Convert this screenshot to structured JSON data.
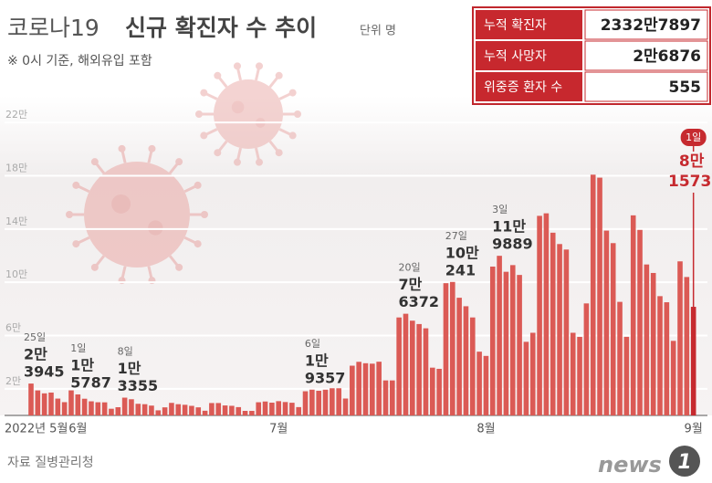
{
  "chart_data": {
    "type": "bar",
    "title": [
      "코로나19",
      "신규 확진자 수 추이"
    ],
    "unit": "단위 명",
    "subtitle": "※ 0시 기준, 해외유입 포함",
    "source": "자료 질병관리청",
    "logo": [
      "news",
      "1"
    ],
    "summary": [
      [
        "누적 확진자",
        "2332만7897"
      ],
      [
        "누적 사망자",
        "2만6876"
      ],
      [
        "위중증 환자 수",
        "555"
      ]
    ],
    "color": "#db5a55",
    "last_color": "#c62a2f",
    "ylim": [
      0,
      240000
    ],
    "yticks": [
      {
        "value": 20000,
        "label": "2만"
      },
      {
        "value": 60000,
        "label": "6만"
      },
      {
        "value": 100000,
        "label": "10만"
      },
      {
        "value": 140000,
        "label": "14만"
      },
      {
        "value": 180000,
        "label": "18만"
      },
      {
        "value": 220000,
        "label": "22만"
      }
    ],
    "grid": true,
    "categories": [
      "2022년 5월",
      null,
      null,
      null,
      null,
      null,
      null,
      "6월",
      null,
      null,
      null,
      null,
      null,
      null,
      null,
      null,
      null,
      null,
      null,
      null,
      null,
      null,
      null,
      null,
      null,
      null,
      null,
      null,
      null,
      null,
      null,
      null,
      null,
      null,
      null,
      null,
      null,
      "7월",
      null,
      null,
      null,
      null,
      null,
      null,
      null,
      null,
      null,
      null,
      null,
      null,
      null,
      null,
      null,
      null,
      null,
      null,
      null,
      null,
      null,
      null,
      null,
      null,
      null,
      null,
      null,
      null,
      null,
      null,
      "8월",
      null,
      null,
      null,
      null,
      null,
      null,
      null,
      null,
      null,
      null,
      null,
      null,
      null,
      null,
      null,
      null,
      null,
      null,
      null,
      null,
      null,
      null,
      null,
      null,
      null,
      null,
      null,
      null,
      null,
      null,
      "9월"
    ],
    "values": [
      23945,
      18796,
      16584,
      17178,
      12650,
      9970,
      18816,
      15787,
      12542,
      10595,
      9896,
      9828,
      5022,
      6170,
      13355,
      12155,
      8730,
      8438,
      7382,
      3828,
      6068,
      9428,
      8441,
      7992,
      7197,
      6068,
      3530,
      9305,
      9310,
      7498,
      7224,
      6238,
      3423,
      3421,
      9896,
      10463,
      9595,
      10715,
      10059,
      9528,
      6254,
      18147,
      19357,
      18511,
      19323,
      20410,
      20402,
      12693,
      37360,
      40266,
      39196,
      38882,
      40342,
      26299,
      26299,
      73582,
      76372,
      71170,
      68632,
      65433,
      35883,
      35000,
      99327,
      100241,
      88384,
      82002,
      73589,
      47883,
      44689,
      111789,
      119889,
      107894,
      112901,
      105507,
      55292,
      62078,
      149897,
      151792,
      137241,
      128714,
      124592,
      62078,
      59000,
      84128,
      180803,
      178574,
      138812,
      129411,
      85297,
      59046,
      150267,
      139339,
      113371,
      107000,
      89586,
      85000,
      56000,
      115714,
      103961,
      81573
    ],
    "day_labels": [
      "25일",
      null,
      null,
      null,
      null,
      null,
      null,
      "1일",
      null,
      null,
      null,
      null,
      null,
      null,
      "8일",
      null,
      null,
      null,
      null,
      null,
      null,
      null,
      null,
      null,
      null,
      null,
      null,
      null,
      null,
      null,
      null,
      null,
      null,
      null,
      null,
      null,
      null,
      null,
      null,
      null,
      null,
      null,
      "6일",
      null,
      null,
      null,
      null,
      null,
      null,
      null,
      null,
      null,
      null,
      null,
      null,
      null,
      "20일",
      null,
      null,
      null,
      null,
      null,
      null,
      "27일",
      null,
      null,
      null,
      null,
      null,
      null,
      "3일",
      null,
      null,
      null,
      null,
      null,
      null,
      null,
      null,
      null,
      null,
      null,
      null,
      null,
      null,
      null,
      null,
      null,
      null,
      null,
      null,
      null,
      null,
      null,
      null,
      null,
      null,
      null,
      null,
      "1일"
    ],
    "value_labels": [
      [
        "2만",
        "3945"
      ],
      null,
      null,
      null,
      null,
      null,
      null,
      [
        "1만",
        "5787"
      ],
      null,
      null,
      null,
      null,
      null,
      null,
      [
        "1만",
        "3355"
      ],
      null,
      null,
      null,
      null,
      null,
      null,
      null,
      null,
      null,
      null,
      null,
      null,
      null,
      null,
      null,
      null,
      null,
      null,
      null,
      null,
      null,
      null,
      null,
      null,
      null,
      null,
      null,
      [
        "1만",
        "9357"
      ],
      null,
      null,
      null,
      null,
      null,
      null,
      null,
      null,
      null,
      null,
      null,
      null,
      null,
      [
        "7만",
        "6372"
      ],
      null,
      null,
      null,
      null,
      null,
      null,
      [
        "10만",
        "241"
      ],
      null,
      null,
      null,
      null,
      null,
      null,
      [
        "11만",
        "9889"
      ],
      null,
      null,
      null,
      null,
      null,
      null,
      null,
      null,
      null,
      null,
      null,
      null,
      null,
      null,
      null,
      null,
      null,
      null,
      null,
      null,
      null,
      null,
      null,
      null,
      null,
      null,
      null,
      null,
      [
        "8만",
        "1573"
      ]
    ]
  }
}
